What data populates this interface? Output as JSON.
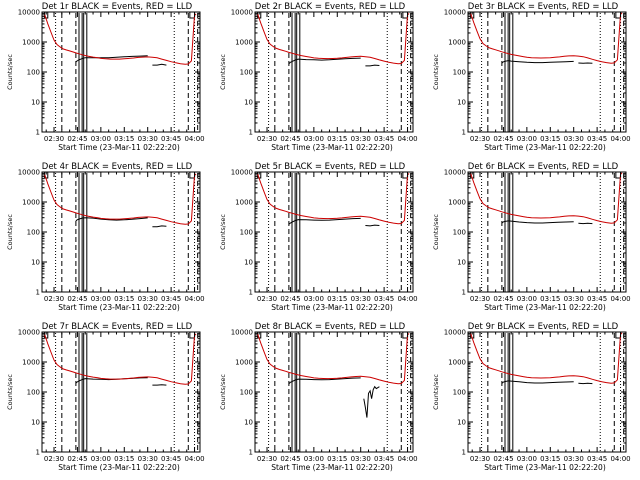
{
  "chart_data": {
    "type": "line",
    "layout": "3x3 grid of panels",
    "y_scale": "log",
    "ylim": [
      1,
      10000
    ],
    "y_tick_labels": [
      "1",
      "10",
      "100",
      "1000",
      "10000"
    ],
    "y_ticks": [
      1,
      10,
      100,
      1000,
      10000
    ],
    "x_tick_labels": [
      "02:30",
      "02:45",
      "03:00",
      "03:15",
      "03:30",
      "03:45",
      "04:00"
    ],
    "x_tick_minutes": [
      150,
      165,
      180,
      195,
      210,
      225,
      240
    ],
    "xlim_minutes": [
      142.3,
      243.5
    ],
    "xlabel": "Start Time (23-Mar-11 02:22:20)",
    "ylabel": "Counts/sec",
    "series_colors": {
      "events": "#000000",
      "lld": "#cc0000"
    },
    "time_axis": [
      "02:24",
      "02:26",
      "02:28",
      "02:30",
      "02:32",
      "02:34",
      "02:36",
      "02:38",
      "02:40",
      "02:42",
      "02:44",
      "02:46",
      "02:48",
      "02:50",
      "02:52",
      "02:55",
      "02:58",
      "03:00",
      "03:03",
      "03:06",
      "03:09",
      "03:12",
      "03:15",
      "03:18",
      "03:21",
      "03:24",
      "03:27",
      "03:30",
      "03:33",
      "03:36",
      "03:39",
      "03:42",
      "03:45",
      "03:48",
      "03:51",
      "03:54",
      "03:56",
      "03:58",
      "04:00",
      "04:01"
    ],
    "lld_profile": [
      9000,
      4500,
      2400,
      1300,
      900,
      750,
      650,
      600,
      560,
      520,
      480,
      450,
      420,
      395,
      375,
      350,
      330,
      315,
      305,
      300,
      298,
      300,
      305,
      315,
      325,
      340,
      350,
      355,
      345,
      330,
      300,
      270,
      245,
      225,
      210,
      200,
      205,
      260,
      8500,
      9500
    ],
    "panels": [
      {
        "title": "Det 1r BLACK = Events, RED = LLD",
        "events": [
          {
            "t": [
              "02:45",
              "02:48",
              "02:50",
              "02:55",
              "03:00",
              "03:05",
              "03:10",
              "03:15",
              "03:20",
              "03:25",
              "03:30"
            ],
            "v": [
              240,
              280,
              300,
              300,
              300,
              300,
              310,
              320,
              330,
              340,
              350
            ]
          },
          {
            "t": [
              "03:33",
              "03:36",
              "03:39",
              "03:42"
            ],
            "v": [
              170,
              170,
              180,
              170
            ]
          }
        ]
      },
      {
        "title": "Det 2r BLACK = Events, RED = LLD",
        "events": [
          {
            "t": [
              "02:45",
              "02:48",
              "02:50",
              "02:55",
              "03:00",
              "03:05",
              "03:10",
              "03:15",
              "03:20",
              "03:25",
              "03:30"
            ],
            "v": [
              210,
              250,
              270,
              260,
              255,
              250,
              255,
              265,
              275,
              285,
              290
            ]
          },
          {
            "t": [
              "03:33",
              "03:36",
              "03:39",
              "03:42"
            ],
            "v": [
              160,
              160,
              170,
              165
            ]
          }
        ]
      },
      {
        "title": "Det 3r BLACK = Events, RED = LLD",
        "events": [
          {
            "t": [
              "02:45",
              "02:48",
              "02:50",
              "02:55",
              "03:00",
              "03:05",
              "03:10",
              "03:15",
              "03:20",
              "03:25",
              "03:30"
            ],
            "v": [
              220,
              240,
              230,
              220,
              210,
              205,
              205,
              210,
              215,
              220,
              225
            ]
          },
          {
            "t": [
              "03:33",
              "03:36",
              "03:39",
              "03:42"
            ],
            "v": [
              200,
              195,
              200,
              195
            ]
          }
        ]
      },
      {
        "title": "Det 4r BLACK = Events, RED = LLD",
        "events": [
          {
            "t": [
              "02:45",
              "02:48",
              "02:50",
              "02:55",
              "03:00",
              "03:05",
              "03:10",
              "03:15",
              "03:20",
              "03:25",
              "03:30"
            ],
            "v": [
              260,
              290,
              300,
              290,
              270,
              255,
              250,
              255,
              265,
              280,
              295
            ]
          },
          {
            "t": [
              "03:33",
              "03:36",
              "03:39",
              "03:42"
            ],
            "v": [
              150,
              150,
              160,
              155
            ]
          }
        ]
      },
      {
        "title": "Det 5r BLACK = Events, RED = LLD",
        "events": [
          {
            "t": [
              "02:45",
              "02:48",
              "02:50",
              "02:55",
              "03:00",
              "03:05",
              "03:10",
              "03:15",
              "03:20",
              "03:25",
              "03:30"
            ],
            "v": [
              200,
              240,
              260,
              255,
              250,
              245,
              250,
              260,
              270,
              280,
              285
            ]
          },
          {
            "t": [
              "03:33",
              "03:36",
              "03:39",
              "03:42"
            ],
            "v": [
              165,
              160,
              170,
              165
            ]
          }
        ]
      },
      {
        "title": "Det 6r BLACK = Events, RED = LLD",
        "events": [
          {
            "t": [
              "02:45",
              "02:48",
              "02:50",
              "02:55",
              "03:00",
              "03:05",
              "03:10",
              "03:15",
              "03:20",
              "03:25",
              "03:30"
            ],
            "v": [
              220,
              235,
              230,
              215,
              205,
              200,
              200,
              205,
              210,
              215,
              220
            ]
          },
          {
            "t": [
              "03:33",
              "03:36",
              "03:39",
              "03:42"
            ],
            "v": [
              195,
              190,
              195,
              190
            ]
          }
        ]
      },
      {
        "title": "Det 7r BLACK = Events, RED = LLD",
        "events": [
          {
            "t": [
              "02:45",
              "02:48",
              "02:50",
              "02:55",
              "03:00",
              "03:05",
              "03:10",
              "03:15",
              "03:20",
              "03:25",
              "03:30"
            ],
            "v": [
              220,
              260,
              280,
              270,
              265,
              260,
              265,
              275,
              285,
              295,
              300
            ]
          },
          {
            "t": [
              "03:33",
              "03:36",
              "03:39",
              "03:42"
            ],
            "v": [
              170,
              170,
              175,
              170
            ]
          }
        ]
      },
      {
        "title": "Det 8r BLACK = Events, RED = LLD",
        "events": [
          {
            "t": [
              "02:45",
              "02:48",
              "02:50",
              "02:55",
              "03:00",
              "03:05",
              "03:10",
              "03:15",
              "03:20",
              "03:25",
              "03:30"
            ],
            "v": [
              210,
              250,
              270,
              265,
              260,
              255,
              260,
              270,
              280,
              290,
              295
            ]
          },
          {
            "t": [
              "03:32",
              "03:33",
              "03:34",
              "03:35",
              "03:36",
              "03:37",
              "03:38",
              "03:39",
              "03:40",
              "03:42"
            ],
            "v": [
              60,
              30,
              14,
              90,
              110,
              60,
              120,
              150,
              130,
              150
            ]
          }
        ]
      },
      {
        "title": "Det 9r BLACK = Events, RED = LLD",
        "events": [
          {
            "t": [
              "02:45",
              "02:48",
              "02:50",
              "02:55",
              "03:00",
              "03:05",
              "03:10",
              "03:15",
              "03:20",
              "03:25",
              "03:30"
            ],
            "v": [
              215,
              235,
              230,
              220,
              205,
              200,
              200,
              205,
              210,
              215,
              220
            ]
          },
          {
            "t": [
              "03:33",
              "03:36",
              "03:39",
              "03:42"
            ],
            "v": [
              195,
              190,
              195,
              190
            ]
          }
        ]
      }
    ],
    "annotation_lines": {
      "solid": [
        "02:46",
        "02:48",
        "02:49",
        "02:51"
      ],
      "dashed": [
        "02:35",
        "02:44",
        "03:56",
        "04:02"
      ],
      "dotted": [
        "02:31",
        "03:47",
        "04:00"
      ]
    },
    "attenuator_markers": [
      {
        "t0": "02:24",
        "t1": "02:26"
      },
      {
        "t0": "03:57",
        "t1": "04:00"
      }
    ]
  }
}
